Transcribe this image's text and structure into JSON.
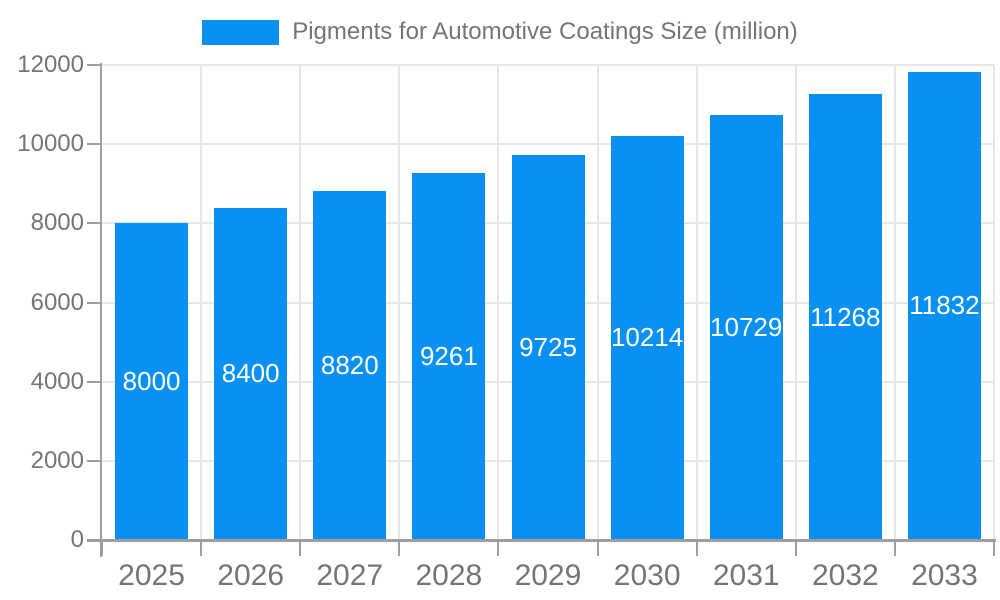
{
  "legend": {
    "label": "Pigments for Automotive Coatings Size (million)"
  },
  "chart_data": {
    "type": "bar",
    "title": "Pigments for Automotive Coatings Size (million)",
    "categories": [
      "2025",
      "2026",
      "2027",
      "2028",
      "2029",
      "2030",
      "2031",
      "2032",
      "2033"
    ],
    "values": [
      8000,
      8400,
      8820,
      9261,
      9725,
      10214,
      10729,
      11268,
      11832
    ],
    "xlabel": "",
    "ylabel": "",
    "ylim": [
      0,
      12000
    ],
    "yticks": [
      0,
      2000,
      4000,
      6000,
      8000,
      10000,
      12000
    ],
    "grid": "horizontal and vertical light gray gridlines",
    "legend_position": "top-center",
    "bar_color": "#0890f2",
    "bar_value_label_color": "#ffffff",
    "grid_color": "#e6e6e6",
    "axis_color": "#9e9e9e",
    "tick_label_color": "#757575"
  }
}
